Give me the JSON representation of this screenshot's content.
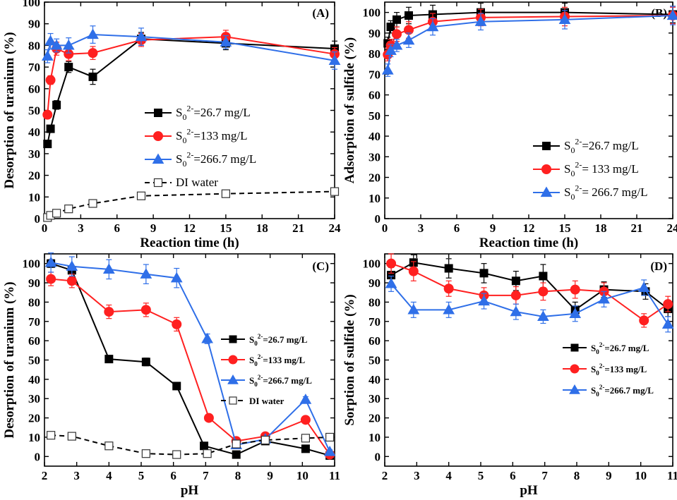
{
  "colors": {
    "black": "#000000",
    "red": "#ff2020",
    "blue": "#2f6fe8",
    "dashed": "#000000"
  },
  "chart_data": [
    {
      "panel": "(A)",
      "type": "line",
      "xlabel": "Reaction time (h)",
      "ylabel": "Desorption of uranium (%)",
      "xlim": [
        0,
        24
      ],
      "ylim": [
        0,
        100
      ],
      "xticks": [
        0,
        3,
        6,
        9,
        12,
        15,
        18,
        21,
        24
      ],
      "yticks": [
        0,
        10,
        20,
        30,
        40,
        50,
        60,
        70,
        80,
        90,
        100
      ],
      "legend_position": "center-right",
      "series": [
        {
          "name": "S0 2- =26.7 mg/L",
          "legend": {
            "base": "S",
            "sub": "0",
            "sup": "2-",
            "rest": "=26.7   mg/L"
          },
          "color": "#000000",
          "marker": "square",
          "dashed": false,
          "x": [
            0.25,
            0.5,
            1,
            2,
            4,
            8,
            15,
            24
          ],
          "y": [
            34.5,
            41.5,
            52.5,
            70,
            65.5,
            83,
            81,
            78.5
          ],
          "err": [
            1.5,
            1.5,
            2,
            2.5,
            3.5,
            3,
            3,
            3.5
          ]
        },
        {
          "name": "S0 2- =133 mg/L",
          "legend": {
            "base": "S",
            "sub": "0",
            "sup": "2-",
            "rest": "=133   mg/L"
          },
          "color": "#ff2020",
          "marker": "circle",
          "dashed": false,
          "x": [
            0.25,
            0.5,
            1,
            2,
            4,
            8,
            15,
            24
          ],
          "y": [
            48,
            64,
            78.5,
            76,
            76.5,
            82.5,
            84,
            76
          ],
          "err": [
            1.5,
            2,
            3,
            3,
            3,
            3,
            3,
            3
          ]
        },
        {
          "name": "S0 2- =266.7 mg/L",
          "legend": {
            "base": "S",
            "sub": "0",
            "sup": "2-",
            "rest": "=266.7 mg/L"
          },
          "color": "#2f6fe8",
          "marker": "triangle",
          "dashed": false,
          "x": [
            0.25,
            0.5,
            1,
            2,
            4,
            8,
            15,
            24
          ],
          "y": [
            75,
            82,
            80,
            80,
            85,
            84,
            81.5,
            73
          ],
          "err": [
            3,
            3.5,
            3,
            3.5,
            4,
            4,
            3,
            4
          ]
        },
        {
          "name": "DI water",
          "legend": {
            "base": "DI water",
            "sub": "",
            "sup": "",
            "rest": ""
          },
          "color": "#000000",
          "marker": "open-square",
          "dashed": true,
          "x": [
            0.25,
            0.5,
            1,
            2,
            4,
            8,
            15,
            24
          ],
          "y": [
            0.5,
            1.5,
            2.5,
            4.5,
            7,
            10.5,
            11.5,
            12.5
          ],
          "err": [
            0,
            0,
            0,
            0,
            0,
            0,
            0,
            0
          ]
        }
      ]
    },
    {
      "panel": "(B)",
      "type": "line",
      "xlabel": "Reaction time (h)",
      "ylabel": "Adsorption of sulfide (%)",
      "xlim": [
        0,
        24
      ],
      "ylim": [
        0,
        105
      ],
      "xticks": [
        0,
        3,
        6,
        9,
        12,
        15,
        18,
        21,
        24
      ],
      "yticks": [
        0,
        10,
        20,
        30,
        40,
        50,
        60,
        70,
        80,
        90,
        100
      ],
      "legend_position": "lower-right",
      "series": [
        {
          "name": "S0 2- =26.7 mg/L",
          "legend": {
            "base": "S",
            "sub": "0",
            "sup": "2-",
            "rest": "=26.7   mg/L"
          },
          "color": "#000000",
          "marker": "square",
          "dashed": false,
          "x": [
            0.25,
            0.5,
            1,
            2,
            4,
            8,
            15,
            24
          ],
          "y": [
            85,
            93,
            96.5,
            98.5,
            99,
            100,
            100,
            99
          ],
          "err": [
            3,
            3,
            3.5,
            4,
            4.5,
            4.5,
            4.5,
            4
          ]
        },
        {
          "name": "S0 2- =133 mg/L",
          "legend": {
            "base": "S",
            "sub": "0",
            "sup": "2-",
            "rest": "= 133   mg/L"
          },
          "color": "#ff2020",
          "marker": "circle",
          "dashed": false,
          "x": [
            0.25,
            0.5,
            1,
            2,
            4,
            8,
            15,
            24
          ],
          "y": [
            79.5,
            84,
            89.5,
            91.5,
            95.5,
            97.5,
            98,
            98.5
          ],
          "err": [
            3,
            3,
            3.5,
            4,
            4,
            4,
            4.5,
            4
          ]
        },
        {
          "name": "S0 2- =266.7 mg/L",
          "legend": {
            "base": "S",
            "sub": "0",
            "sup": "2-",
            "rest": "= 266.7 mg/L"
          },
          "color": "#2f6fe8",
          "marker": "triangle",
          "dashed": false,
          "x": [
            0.25,
            0.5,
            1,
            2,
            4,
            8,
            15,
            24
          ],
          "y": [
            72,
            81.5,
            84,
            86.5,
            93,
            95.5,
            96.5,
            98.5
          ],
          "err": [
            3,
            3,
            3,
            3.5,
            4,
            4,
            4.5,
            4.5
          ]
        }
      ]
    },
    {
      "panel": "(C)",
      "type": "line",
      "xlabel": "pH",
      "ylabel": "Desorption of uranium (%)",
      "xlim": [
        2,
        11
      ],
      "ylim": [
        -5,
        105
      ],
      "xticks": [
        2,
        3,
        4,
        5,
        6,
        7,
        8,
        9,
        10,
        11
      ],
      "yticks": [
        0,
        10,
        20,
        30,
        40,
        50,
        60,
        70,
        80,
        90,
        100
      ],
      "legend_position": "center-right",
      "series": [
        {
          "name": "S0 2- =26.7 mg/L",
          "legend": {
            "base": "S",
            "sub": "0",
            "sup": "2-",
            "rest": "=26.7  mg/L"
          },
          "color": "#000000",
          "marker": "square",
          "dashed": false,
          "x": [
            2.2,
            2.85,
            4,
            5.15,
            6.1,
            6.95,
            7.95,
            8.85,
            10.1,
            10.85
          ],
          "y": [
            100,
            96.5,
            50.5,
            49,
            36.5,
            5.5,
            1,
            8,
            4,
            0.5
          ],
          "err": [
            2,
            2,
            1.5,
            2,
            1.5,
            1,
            1,
            1.5,
            1,
            1
          ]
        },
        {
          "name": "S0 2- =133 mg/L",
          "legend": {
            "base": "S",
            "sub": "0",
            "sup": "2-",
            "rest": "=133   mg/L"
          },
          "color": "#ff2020",
          "marker": "circle",
          "dashed": false,
          "x": [
            2.2,
            2.85,
            4,
            5.15,
            6.1,
            7.1,
            7.95,
            8.85,
            10.1,
            10.85
          ],
          "y": [
            92,
            91,
            75,
            76,
            68.5,
            20,
            8,
            10.5,
            19,
            1
          ],
          "err": [
            3.5,
            3.5,
            3.5,
            3.5,
            3.5,
            1.5,
            1,
            1.5,
            1.5,
            1
          ]
        },
        {
          "name": "S0 2- =266.7 mg/L",
          "legend": {
            "base": "S",
            "sub": "0",
            "sup": "2-",
            "rest": "=266.7 mg/L"
          },
          "color": "#2f6fe8",
          "marker": "triangle",
          "dashed": false,
          "x": [
            2.2,
            2.85,
            4,
            5.15,
            6.1,
            7.05,
            7.95,
            8.85,
            10.1,
            10.85
          ],
          "y": [
            100.5,
            98.5,
            97,
            94.5,
            92.5,
            61,
            6,
            9,
            29.5,
            2.5
          ],
          "err": [
            5,
            5,
            5,
            5,
            5,
            2.5,
            1.5,
            1.5,
            1.5,
            1
          ]
        },
        {
          "name": "DI water",
          "legend": {
            "base": "DI water",
            "sub": "",
            "sup": "",
            "rest": ""
          },
          "color": "#000000",
          "marker": "open-square",
          "dashed": true,
          "x": [
            2.2,
            2.85,
            4,
            5.15,
            6.1,
            7.05,
            7.95,
            8.85,
            10.1,
            10.85
          ],
          "y": [
            11,
            10.5,
            5.5,
            1.5,
            1,
            1.5,
            6.5,
            8.5,
            9.5,
            10
          ],
          "err": [
            0,
            0,
            0,
            0,
            0,
            0,
            0,
            0,
            0,
            0
          ]
        }
      ]
    },
    {
      "panel": "(D)",
      "type": "line",
      "xlabel": "pH",
      "ylabel": "Sorption of sulfide (%)",
      "xlim": [
        2,
        11
      ],
      "ylim": [
        -5,
        105
      ],
      "xticks": [
        2,
        3,
        4,
        5,
        6,
        7,
        8,
        9,
        10,
        11
      ],
      "yticks": [
        0,
        10,
        20,
        30,
        40,
        50,
        60,
        70,
        80,
        90,
        100
      ],
      "legend_position": "center-right",
      "series": [
        {
          "name": "S0 2- =26.7 mg/L",
          "legend": {
            "base": "S",
            "sub": "0",
            "sup": "2-",
            "rest": "=26.7  mg/L"
          },
          "color": "#000000",
          "marker": "square",
          "dashed": false,
          "x": [
            2.2,
            2.9,
            4,
            5.1,
            6.1,
            6.95,
            7.95,
            8.85,
            10.15,
            10.85
          ],
          "y": [
            94,
            100.5,
            97.5,
            95,
            91,
            93.5,
            76,
            86.5,
            85.5,
            76.5
          ],
          "err": [
            4,
            4,
            5,
            5,
            5,
            6,
            4,
            4,
            4,
            4
          ]
        },
        {
          "name": "S0 2- =133 mg/L",
          "legend": {
            "base": "S",
            "sub": "0",
            "sup": "2-",
            "rest": "=133   mg/L"
          },
          "color": "#ff2020",
          "marker": "circle",
          "dashed": false,
          "x": [
            2.2,
            2.9,
            4,
            5.1,
            6.1,
            6.95,
            7.95,
            8.85,
            10.1,
            10.85
          ],
          "y": [
            100,
            96,
            87,
            83.5,
            83.5,
            85.5,
            86.5,
            85.5,
            70.5,
            79
          ],
          "err": [
            5,
            5,
            4,
            4,
            4.5,
            4.5,
            4.5,
            4.5,
            3.5,
            4
          ]
        },
        {
          "name": "S0 2- =266.7 mg/L",
          "legend": {
            "base": "S",
            "sub": "0",
            "sup": "2-",
            "rest": "=266.7 mg/L"
          },
          "color": "#2f6fe8",
          "marker": "triangle",
          "dashed": false,
          "x": [
            2.2,
            2.9,
            4,
            5.1,
            6.1,
            6.95,
            7.95,
            8.85,
            10.1,
            10.85
          ],
          "y": [
            89.5,
            76,
            76,
            80.5,
            75,
            72.5,
            74,
            81.5,
            87.5,
            68.5
          ],
          "err": [
            4,
            4,
            4,
            4,
            4,
            3.5,
            4,
            4,
            4,
            4
          ]
        }
      ]
    }
  ]
}
